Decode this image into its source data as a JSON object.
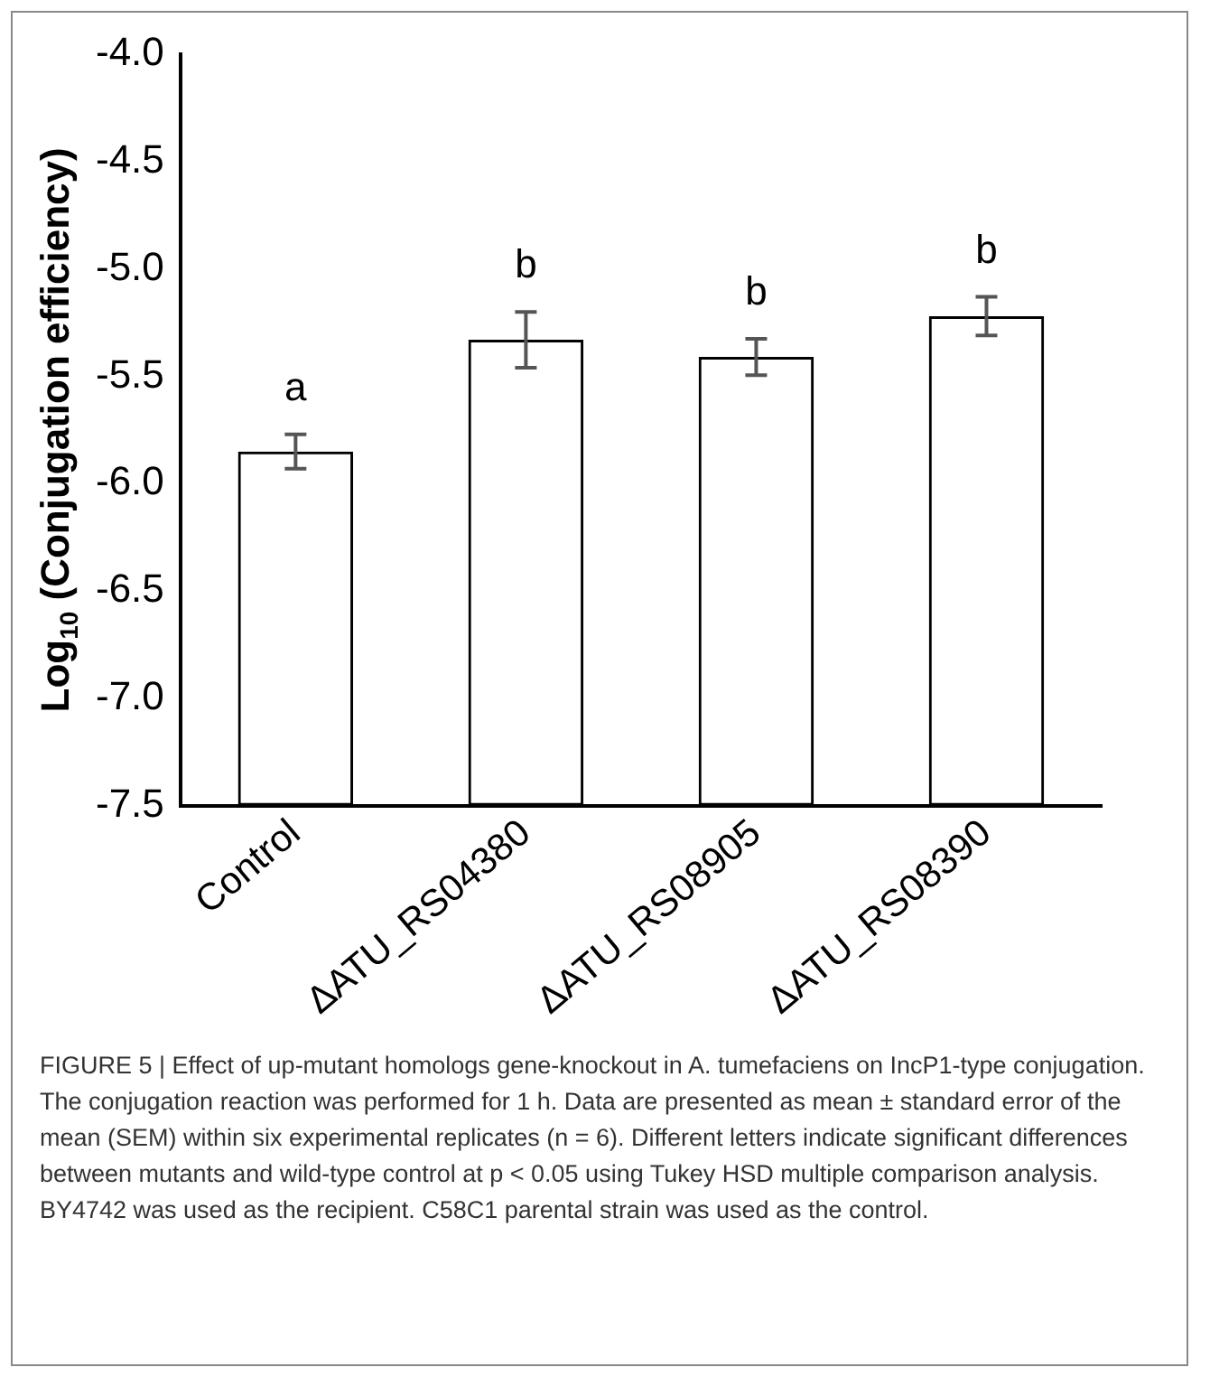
{
  "chart_data": {
    "type": "bar",
    "ylabel": "Log$_{10}$ (Conjugation efficiency)",
    "categories": [
      "Control",
      "ΔATU_RS04380",
      "ΔATU_RS08905",
      "ΔATU_RS08390"
    ],
    "base": [
      -7.5,
      -7.5,
      -7.5,
      -7.5
    ],
    "values": [
      1.65,
      2.17,
      2.09,
      2.28
    ],
    "errors": [
      0.08,
      0.13,
      0.085,
      0.09
    ],
    "color": "#000000",
    "ylim": [
      -7.5,
      -4.0
    ],
    "yticks": [
      {
        "value": -7.5,
        "label": "-7.5"
      },
      {
        "value": -7.0,
        "label": "-7.0"
      },
      {
        "value": -6.5,
        "label": "-6.5"
      },
      {
        "value": -6.0,
        "label": "-6.0"
      },
      {
        "value": -5.5,
        "label": "-5.5"
      },
      {
        "value": -5.0,
        "label": "-5.0"
      },
      {
        "value": -4.5,
        "label": "-4.5"
      },
      {
        "value": -4.0,
        "label": "-4.0"
      }
    ],
    "grid": false,
    "legend": false,
    "annotations": [
      "a",
      "b",
      "b",
      "b",
      "FIGURE 5 | Effect of up-mutant homologs gene-knockout in A. tumefaciens on IncP1-type conjugation. The conjugation reaction was performed for 1 h. Data are presented as mean ± standard error of the mean (SEM) within six experimental replicates (n = 6). Different letters indicate significant differences between mutants and wild-type control at p < 0.05 using Tukey HSD multiple comparison analysis. BY4742 was used as the recipient. C58C1 parental strain was used as the control."
    ]
  }
}
